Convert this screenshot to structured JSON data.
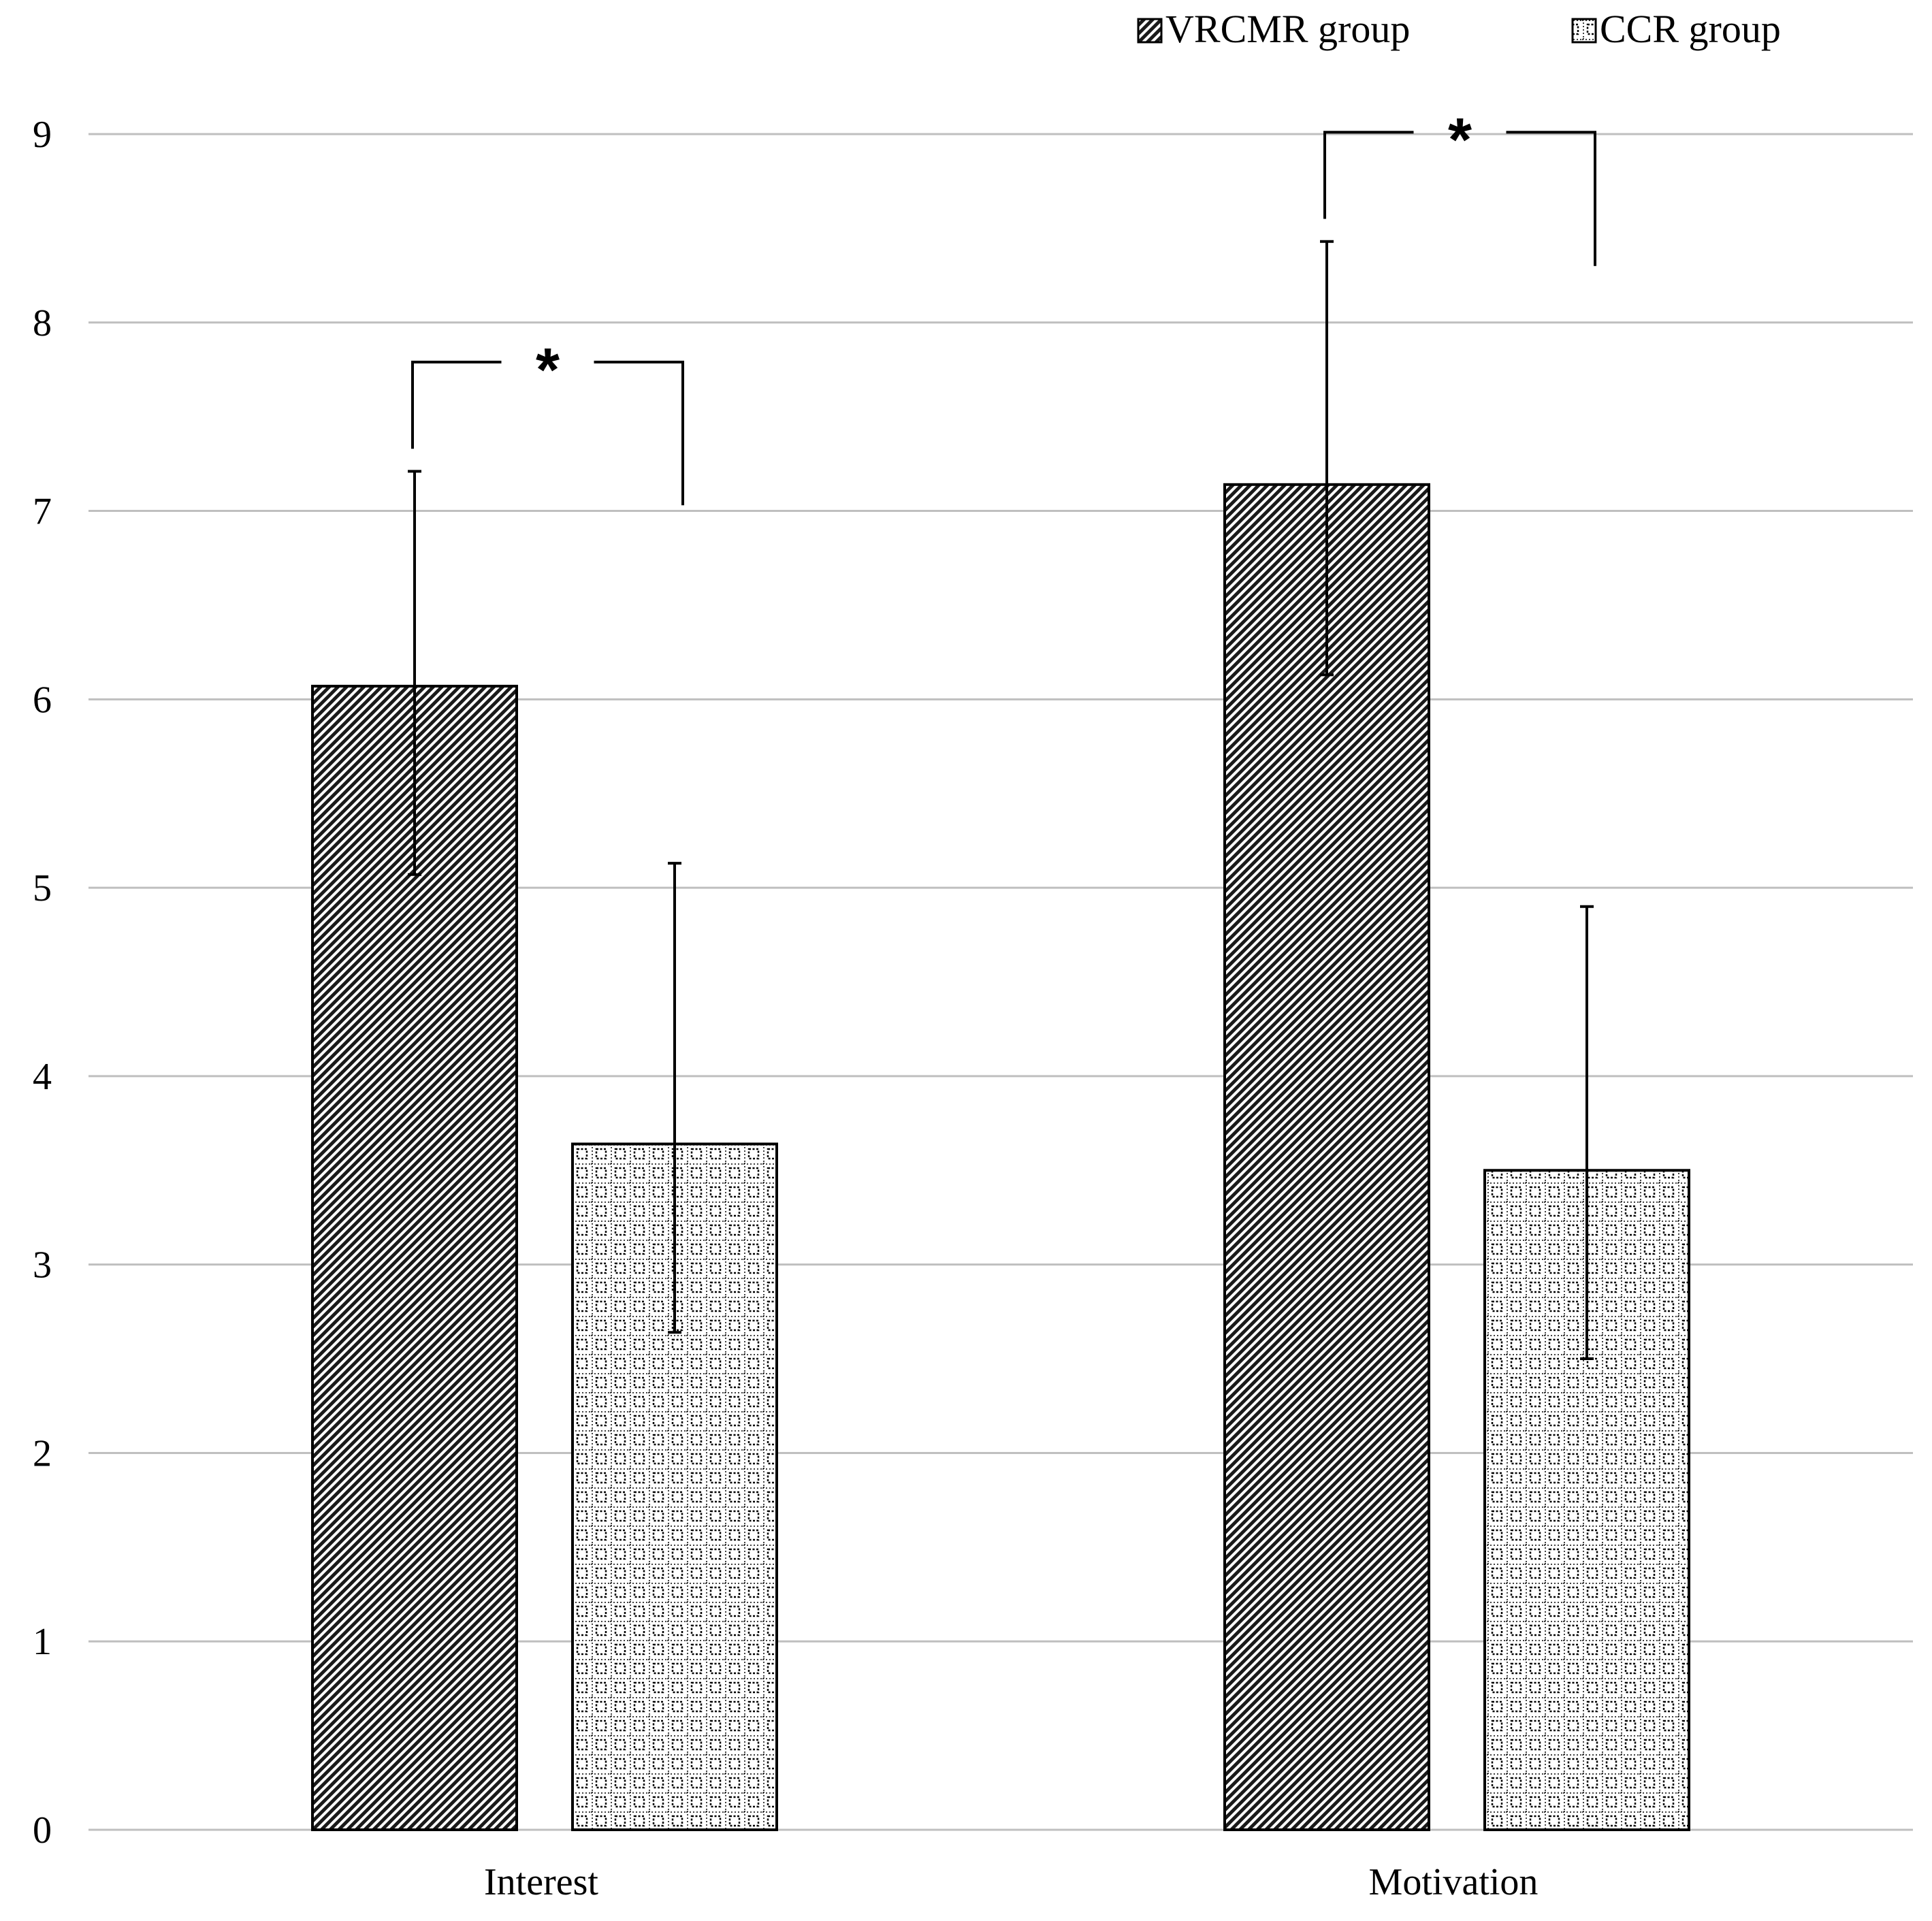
{
  "chart_data": {
    "type": "bar",
    "categories": [
      "Interest",
      "Motivation"
    ],
    "series": [
      {
        "name": "VRCMR group",
        "pattern": "diagonal-hatch",
        "values": [
          6.07,
          7.14
        ],
        "error_upper": [
          7.21,
          8.43
        ],
        "error_lower": [
          5.07,
          6.13
        ]
      },
      {
        "name": "CCR group",
        "pattern": "dotted-grid",
        "values": [
          3.64,
          3.5
        ],
        "error_upper": [
          5.13,
          4.9
        ],
        "error_lower": [
          2.64,
          2.5
        ]
      }
    ],
    "ylim": [
      0,
      9
    ],
    "yticks": [
      "0",
      "1",
      "2",
      "3",
      "4",
      "5",
      "6",
      "7",
      "8",
      "9"
    ],
    "grid": true,
    "legend": "top-right",
    "significance": [
      {
        "category": "Interest",
        "label": "*"
      },
      {
        "category": "Motivation",
        "label": "*"
      }
    ],
    "colors": {
      "bar_stroke": "#000000",
      "grid": "#bfbfbf",
      "background": "#ffffff"
    }
  }
}
